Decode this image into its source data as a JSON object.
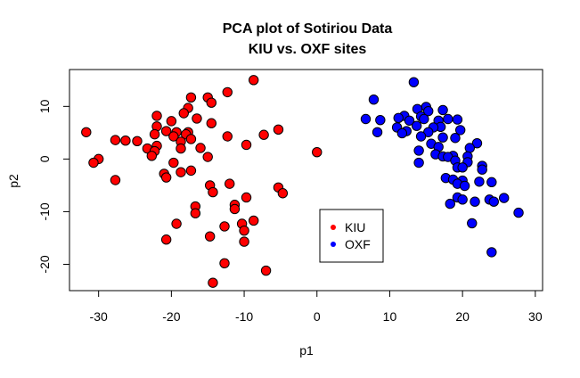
{
  "chart_data": {
    "type": "scatter",
    "title": [
      "PCA plot of Sotiriou Data",
      "KIU vs. OXF sites"
    ],
    "xlabel": "p1",
    "ylabel": "p2",
    "xlim": [
      -34,
      31
    ],
    "ylim": [
      -25,
      17
    ],
    "xticks": [
      -30,
      -20,
      -10,
      0,
      10,
      20,
      30
    ],
    "yticks": [
      -20,
      -10,
      0,
      10
    ],
    "grid": false,
    "legend_position": "center-bottom",
    "series": [
      {
        "name": "KIU",
        "color": "#ff0000",
        "points": [
          [
            -8.7,
            15
          ],
          [
            -12.3,
            12.7
          ],
          [
            -17.3,
            11.7
          ],
          [
            -15,
            11.7
          ],
          [
            -14.5,
            10.7
          ],
          [
            -17.7,
            9.7
          ],
          [
            -18.3,
            8.7
          ],
          [
            -22,
            8.2
          ],
          [
            -16.5,
            7.7
          ],
          [
            -20,
            7.2
          ],
          [
            -14.5,
            6.8
          ],
          [
            -22,
            6.2
          ],
          [
            -20.7,
            5.3
          ],
          [
            -31.7,
            5.1
          ],
          [
            -19.3,
            5.1
          ],
          [
            -17.7,
            5.1
          ],
          [
            -22.3,
            4.7
          ],
          [
            -18,
            4.7
          ],
          [
            -5.3,
            5.6
          ],
          [
            -7.3,
            4.6
          ],
          [
            -12.3,
            4.3
          ],
          [
            -19.7,
            4.3
          ],
          [
            -17.3,
            3.8
          ],
          [
            -18.7,
            3.3
          ],
          [
            -27.7,
            3.6
          ],
          [
            -26.3,
            3.5
          ],
          [
            -24.7,
            3.4
          ],
          [
            -22,
            2.5
          ],
          [
            -9.7,
            2.7
          ],
          [
            -16,
            2.1
          ],
          [
            -23.3,
            2
          ],
          [
            -18.7,
            2
          ],
          [
            -22.3,
            1.5
          ],
          [
            -22.7,
            0.6
          ],
          [
            -15,
            0.4
          ],
          [
            -30,
            0
          ],
          [
            -30.7,
            -0.7
          ],
          [
            -19.7,
            -0.7
          ],
          [
            0,
            1.3
          ],
          [
            -17.3,
            -2.2
          ],
          [
            -18.7,
            -2.5
          ],
          [
            -21,
            -2.8
          ],
          [
            -20.7,
            -3.5
          ],
          [
            -27.7,
            -4
          ],
          [
            -14.7,
            -5
          ],
          [
            -12,
            -4.7
          ],
          [
            -5.3,
            -5.4
          ],
          [
            -4.7,
            -6.5
          ],
          [
            -14.3,
            -6.3
          ],
          [
            -9.7,
            -7.3
          ],
          [
            -11.3,
            -8.7
          ],
          [
            -16.7,
            -9
          ],
          [
            -11.3,
            -9.5
          ],
          [
            -16.7,
            -10.3
          ],
          [
            -8.7,
            -11.7
          ],
          [
            -19.3,
            -12.3
          ],
          [
            -10.3,
            -12.3
          ],
          [
            -12.7,
            -12.8
          ],
          [
            -10,
            -13.6
          ],
          [
            -14.7,
            -14.7
          ],
          [
            -20.7,
            -15.3
          ],
          [
            -10,
            -15.7
          ],
          [
            -12.7,
            -19.8
          ],
          [
            -7,
            -21.2
          ],
          [
            -14.3,
            -23.5
          ]
        ]
      },
      {
        "name": "OXF",
        "color": "#0000ff",
        "points": [
          [
            13.3,
            14.6
          ],
          [
            7.8,
            11.3
          ],
          [
            15,
            9.9
          ],
          [
            13.8,
            9.5
          ],
          [
            17.3,
            9.3
          ],
          [
            15.3,
            9.1
          ],
          [
            12,
            8.2
          ],
          [
            14.3,
            8.1
          ],
          [
            11.2,
            7.8
          ],
          [
            14.7,
            7.6
          ],
          [
            18,
            7.6
          ],
          [
            6.7,
            7.6
          ],
          [
            8.7,
            7.4
          ],
          [
            19.3,
            7.5
          ],
          [
            16.7,
            7.3
          ],
          [
            12.7,
            7.3
          ],
          [
            17,
            6.1
          ],
          [
            13.7,
            6.3
          ],
          [
            11,
            6
          ],
          [
            16,
            6
          ],
          [
            15.3,
            5.1
          ],
          [
            12.3,
            5.3
          ],
          [
            8.3,
            5.1
          ],
          [
            19.7,
            5.5
          ],
          [
            11.7,
            4.9
          ],
          [
            14.3,
            4.3
          ],
          [
            17.3,
            4.1
          ],
          [
            19,
            4
          ],
          [
            15.7,
            2.9
          ],
          [
            22,
            3
          ],
          [
            16.7,
            2.3
          ],
          [
            21,
            2.1
          ],
          [
            14,
            1.6
          ],
          [
            16.3,
            0.9
          ],
          [
            18.7,
            0.6
          ],
          [
            17.3,
            0.5
          ],
          [
            20.7,
            0.5
          ],
          [
            18,
            0.4
          ],
          [
            19,
            -0.3
          ],
          [
            20.7,
            -0.6
          ],
          [
            14,
            -0.7
          ],
          [
            22.7,
            -1.3
          ],
          [
            19.3,
            -1.6
          ],
          [
            20,
            -1.6
          ],
          [
            22.7,
            -2
          ],
          [
            17.7,
            -3.6
          ],
          [
            18.7,
            -3.9
          ],
          [
            20,
            -4.1
          ],
          [
            22.3,
            -4.3
          ],
          [
            24,
            -4.4
          ],
          [
            19.3,
            -4.7
          ],
          [
            20.3,
            -5.1
          ],
          [
            19.3,
            -7.3
          ],
          [
            20,
            -7.7
          ],
          [
            25.7,
            -7.4
          ],
          [
            23.7,
            -7.7
          ],
          [
            21.7,
            -8.1
          ],
          [
            24.3,
            -8.1
          ],
          [
            18.3,
            -8.5
          ],
          [
            27.7,
            -10.2
          ],
          [
            21.3,
            -12.2
          ],
          [
            24,
            -17.7
          ]
        ]
      }
    ]
  }
}
